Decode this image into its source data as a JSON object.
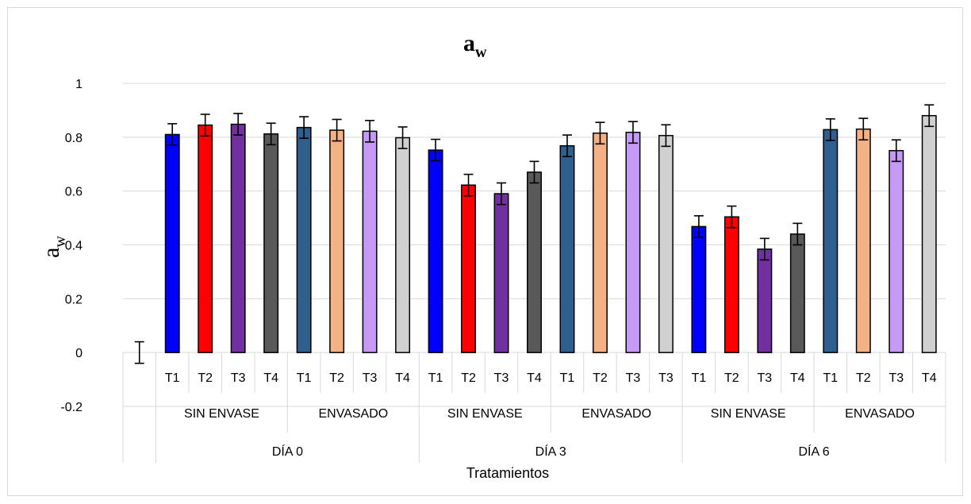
{
  "chart_data": {
    "type": "bar",
    "title": "a",
    "title_subscript": "w",
    "ylabel": "a",
    "ylabel_subscript": "w",
    "xlabel": "Tratamientos",
    "ylim": [
      -0.2,
      1
    ],
    "yticks": [
      "-0.2",
      "0",
      "0.2",
      "0.4",
      "0.6",
      "0.8",
      "1"
    ],
    "grid": true,
    "legend": "none",
    "groups": [
      {
        "label": "DÍA  0",
        "subgroups": [
          {
            "label": "SIN ENVASE",
            "bars": [
              {
                "label": "T1",
                "value": 0.81,
                "error": 0.04,
                "color": "#0000ff"
              },
              {
                "label": "T2",
                "value": 0.845,
                "error": 0.04,
                "color": "#ff0000"
              },
              {
                "label": "T3",
                "value": 0.848,
                "error": 0.04,
                "color": "#7030a0"
              },
              {
                "label": "T4",
                "value": 0.812,
                "error": 0.04,
                "color": "#595959"
              }
            ]
          },
          {
            "label": "ENVASADO",
            "bars": [
              {
                "label": "T1",
                "value": 0.836,
                "error": 0.04,
                "color": "#2e5f8f"
              },
              {
                "label": "T2",
                "value": 0.826,
                "error": 0.04,
                "color": "#f4b183"
              },
              {
                "label": "T3",
                "value": 0.822,
                "error": 0.04,
                "color": "#c49af5"
              },
              {
                "label": "T4",
                "value": 0.798,
                "error": 0.04,
                "color": "#d0d0d0"
              }
            ]
          }
        ]
      },
      {
        "label": "DÍA  3",
        "subgroups": [
          {
            "label": "SIN ENVASE",
            "bars": [
              {
                "label": "T1",
                "value": 0.752,
                "error": 0.04,
                "color": "#0000ff"
              },
              {
                "label": "T2",
                "value": 0.622,
                "error": 0.04,
                "color": "#ff0000"
              },
              {
                "label": "T3",
                "value": 0.59,
                "error": 0.04,
                "color": "#7030a0"
              },
              {
                "label": "T4",
                "value": 0.67,
                "error": 0.04,
                "color": "#595959"
              }
            ]
          },
          {
            "label": "ENVASADO",
            "bars": [
              {
                "label": "T1",
                "value": 0.768,
                "error": 0.04,
                "color": "#2e5f8f"
              },
              {
                "label": "T2",
                "value": 0.815,
                "error": 0.04,
                "color": "#f4b183"
              },
              {
                "label": "T3",
                "value": 0.818,
                "error": 0.04,
                "color": "#c49af5"
              },
              {
                "label": "T3",
                "value": 0.806,
                "error": 0.04,
                "color": "#d0d0d0"
              }
            ]
          }
        ]
      },
      {
        "label": "DÍA 6",
        "subgroups": [
          {
            "label": "SIN ENVASE",
            "bars": [
              {
                "label": "T1",
                "value": 0.468,
                "error": 0.04,
                "color": "#0000ff"
              },
              {
                "label": "T2",
                "value": 0.504,
                "error": 0.04,
                "color": "#ff0000"
              },
              {
                "label": "T3",
                "value": 0.384,
                "error": 0.04,
                "color": "#7030a0"
              },
              {
                "label": "T4",
                "value": 0.44,
                "error": 0.04,
                "color": "#595959"
              }
            ]
          },
          {
            "label": "ENVASADO",
            "bars": [
              {
                "label": "T1",
                "value": 0.828,
                "error": 0.04,
                "color": "#2e5f8f"
              },
              {
                "label": "T2",
                "value": 0.83,
                "error": 0.04,
                "color": "#f4b183"
              },
              {
                "label": "T3",
                "value": 0.75,
                "error": 0.04,
                "color": "#c49af5"
              },
              {
                "label": "T4",
                "value": 0.88,
                "error": 0.04,
                "color": "#d0d0d0"
              }
            ]
          }
        ]
      }
    ],
    "leading_empty_category": {
      "value": 0,
      "error": 0.04
    }
  }
}
